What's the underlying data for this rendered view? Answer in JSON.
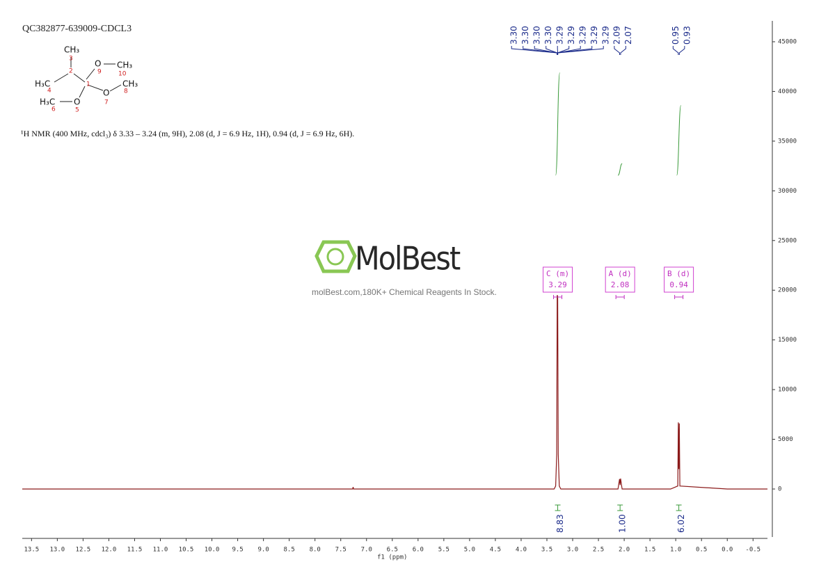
{
  "chart_data": {
    "type": "line",
    "title": "QC382877-639009-CDCL3",
    "subtitle": "¹H NMR (400 MHz, cdcl₃) δ 3.33 – 3.24 (m, 9H), 2.08 (d, J = 6.9 Hz, 1H), 0.94 (d, J = 6.9 Hz, 6H).",
    "x_label": "f1 (ppm)",
    "xlim": [
      13.68,
      -0.78
    ],
    "ylim": [
      -4830,
      47100
    ],
    "xticks": [
      13.5,
      {
        "value": 13,
        "label": "13.0"
      },
      12.5,
      {
        "value": 12,
        "label": "12.0"
      },
      11.5,
      {
        "value": 11,
        "label": "11.0"
      },
      10.5,
      {
        "value": 10,
        "label": "10.0"
      },
      9.5,
      {
        "value": 9,
        "label": "9.0"
      },
      8.5,
      {
        "value": 8,
        "label": "8.0"
      },
      7.5,
      {
        "value": 7,
        "label": "7.0"
      },
      6.5,
      {
        "value": 6,
        "label": "6.0"
      },
      5.5,
      {
        "value": 5,
        "label": "5.0"
      },
      4.5,
      {
        "value": 4,
        "label": "4.0"
      },
      3.5,
      {
        "value": 3,
        "label": "3.0"
      },
      2.5,
      {
        "value": 2,
        "label": "2.0"
      },
      1.5,
      {
        "value": 1,
        "label": "1.0"
      },
      0.5,
      {
        "value": 0,
        "label": "0.0"
      },
      -0.5
    ],
    "yticks": [
      0,
      5000,
      10000,
      15000,
      20000,
      25000,
      30000,
      35000,
      40000,
      45000
    ],
    "color": "#8b1a1a",
    "x": [
      13.68,
      7.27,
      7.26,
      7.25,
      3.36,
      3.33,
      3.31,
      3.3,
      3.29,
      3.28,
      3.26,
      3.23,
      2.12,
      2.09,
      2.08,
      2.07,
      2.04,
      1.1,
      0.96,
      0.95,
      0.94,
      0.93,
      0.92,
      0.0,
      -0.78
    ],
    "values": [
      0,
      0,
      200,
      0,
      0,
      300,
      3500,
      19500,
      19400,
      3500,
      300,
      0,
      0,
      1000,
      400,
      1050,
      0,
      0,
      300,
      6700,
      2000,
      6600,
      300,
      0,
      0
    ],
    "peak_labels": [
      {
        "value": 3.3,
        "label": "3.30"
      },
      {
        "value": 3.3,
        "label": "3.30"
      },
      {
        "value": 3.3,
        "label": "3.30"
      },
      {
        "value": 3.3,
        "label": "3.30"
      },
      3.29,
      3.29,
      3.29,
      3.29,
      3.29,
      2.09,
      2.07,
      0.95,
      0.93
    ],
    "multiplets": [
      {
        "label": "C (m)",
        "shift": 3.29,
        "integral": 8.83
      },
      {
        "label": "A (d)",
        "shift": 2.08,
        "integral": {
          "value": 1,
          "label": "1.00"
        }
      },
      {
        "label": "B (d)",
        "shift": 0.94,
        "integral": 6.02
      }
    ]
  },
  "structure": {
    "labels": [
      "CH₃",
      "3",
      "2",
      "H₃C",
      "4",
      "1",
      "O",
      "9",
      "CH₃",
      "10",
      "O",
      "7",
      "CH₃",
      "8",
      "H₃C",
      "6",
      "O",
      "5"
    ]
  },
  "watermark": {
    "brand": "MolBest",
    "tagline": "molBest.com,180K+ Chemical Reagents In Stock."
  }
}
